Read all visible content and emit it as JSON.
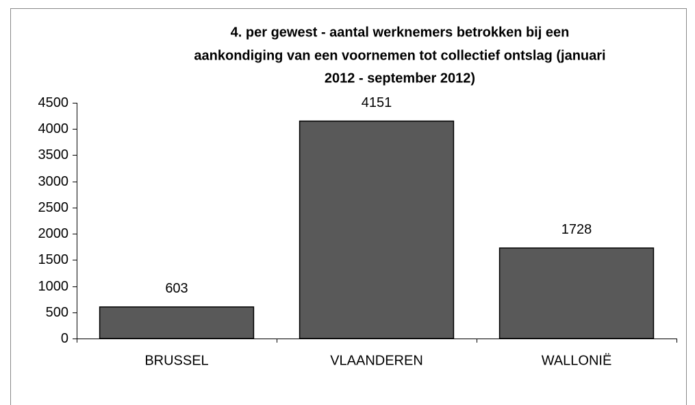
{
  "chart_data": {
    "type": "bar",
    "title": [
      "4. per gewest - aantal werknemers betrokken bij een",
      "aankondiging  van een voornemen tot collectief ontslag (januari",
      "2012 - september 2012)"
    ],
    "categories": [
      "BRUSSEL",
      "VLAANDEREN",
      "WALLONIË"
    ],
    "values": [
      603,
      4151,
      1728
    ],
    "color": "#595959",
    "ylim": [
      0,
      4500
    ],
    "yticks": [
      0,
      500,
      1000,
      1500,
      2000,
      2500,
      3000,
      3500,
      4000,
      4500
    ],
    "grid": false
  }
}
